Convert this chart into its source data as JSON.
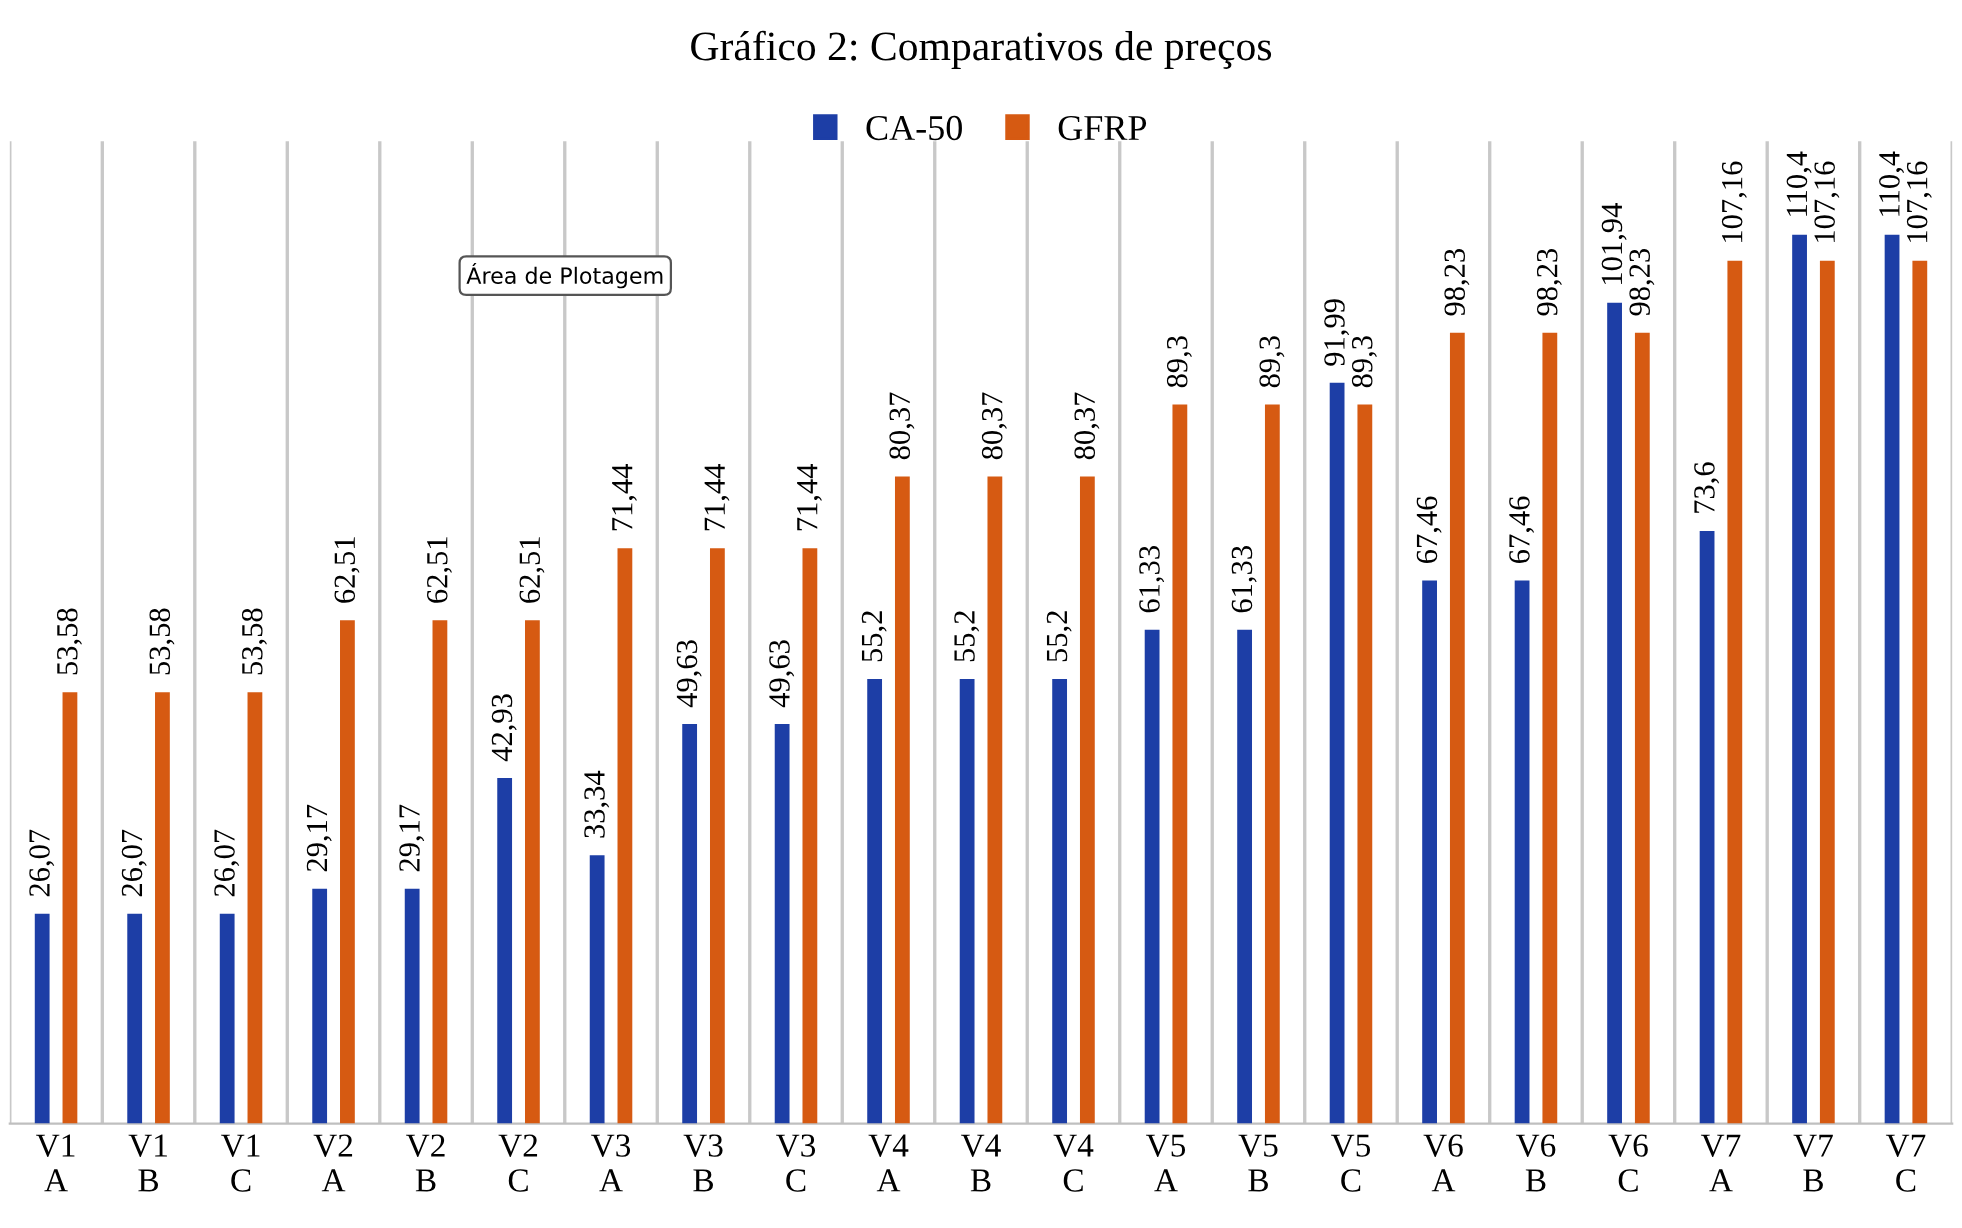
{
  "chart_data": {
    "type": "bar",
    "title": "Gráfico 2: Comparativos de preços",
    "categories": [
      "V1\nA",
      "V1\nB",
      "V1\nC",
      "V2\nA",
      "V2\nB",
      "V2\nC",
      "V3\nA",
      "V3\nB",
      "V3\nC",
      "V4\nA",
      "V4\nB",
      "V4\nC",
      "V5\nA",
      "V5\nB",
      "V5\nC",
      "V6\nA",
      "V6\nB",
      "V6\nC",
      "V7\nA",
      "V7\nB",
      "V7\nC"
    ],
    "series": [
      {
        "name": "CA-50",
        "color": "#1d3ea6",
        "values": [
          26.07,
          26.07,
          26.07,
          29.17,
          29.17,
          42.93,
          33.34,
          49.63,
          49.63,
          55.2,
          55.2,
          55.2,
          61.33,
          61.33,
          91.99,
          67.46,
          67.46,
          101.94,
          73.6,
          110.4,
          110.4
        ],
        "value_labels": [
          "26,07",
          "26,07",
          "26,07",
          "29,17",
          "29,17",
          "42,93",
          "33,34",
          "49,63",
          "49,63",
          "55,2",
          "55,2",
          "55,2",
          "61,33",
          "61,33",
          "91,99",
          "67,46",
          "67,46",
          "101,94",
          "73,6",
          "110,4",
          "110,4"
        ]
      },
      {
        "name": "GFRP",
        "color": "#d65a12",
        "values": [
          53.58,
          53.58,
          53.58,
          62.51,
          62.51,
          62.51,
          71.44,
          71.44,
          71.44,
          80.37,
          80.37,
          80.37,
          89.3,
          89.3,
          89.3,
          98.23,
          98.23,
          98.23,
          107.16,
          107.16,
          107.16
        ],
        "value_labels": [
          "53,58",
          "53,58",
          "53,58",
          "62,51",
          "62,51",
          "62,51",
          "71,44",
          "71,44",
          "71,44",
          "80,37",
          "80,37",
          "80,37",
          "89,3",
          "89,3",
          "89,3",
          "98,23",
          "98,23",
          "98,23",
          "107,16",
          "107,16",
          "107,16"
        ]
      }
    ],
    "ylim": [
      0,
      122
    ],
    "tick_labels": "x",
    "grid": "x",
    "legend": "top",
    "annotations": [
      "Área de Plotagem"
    ]
  }
}
